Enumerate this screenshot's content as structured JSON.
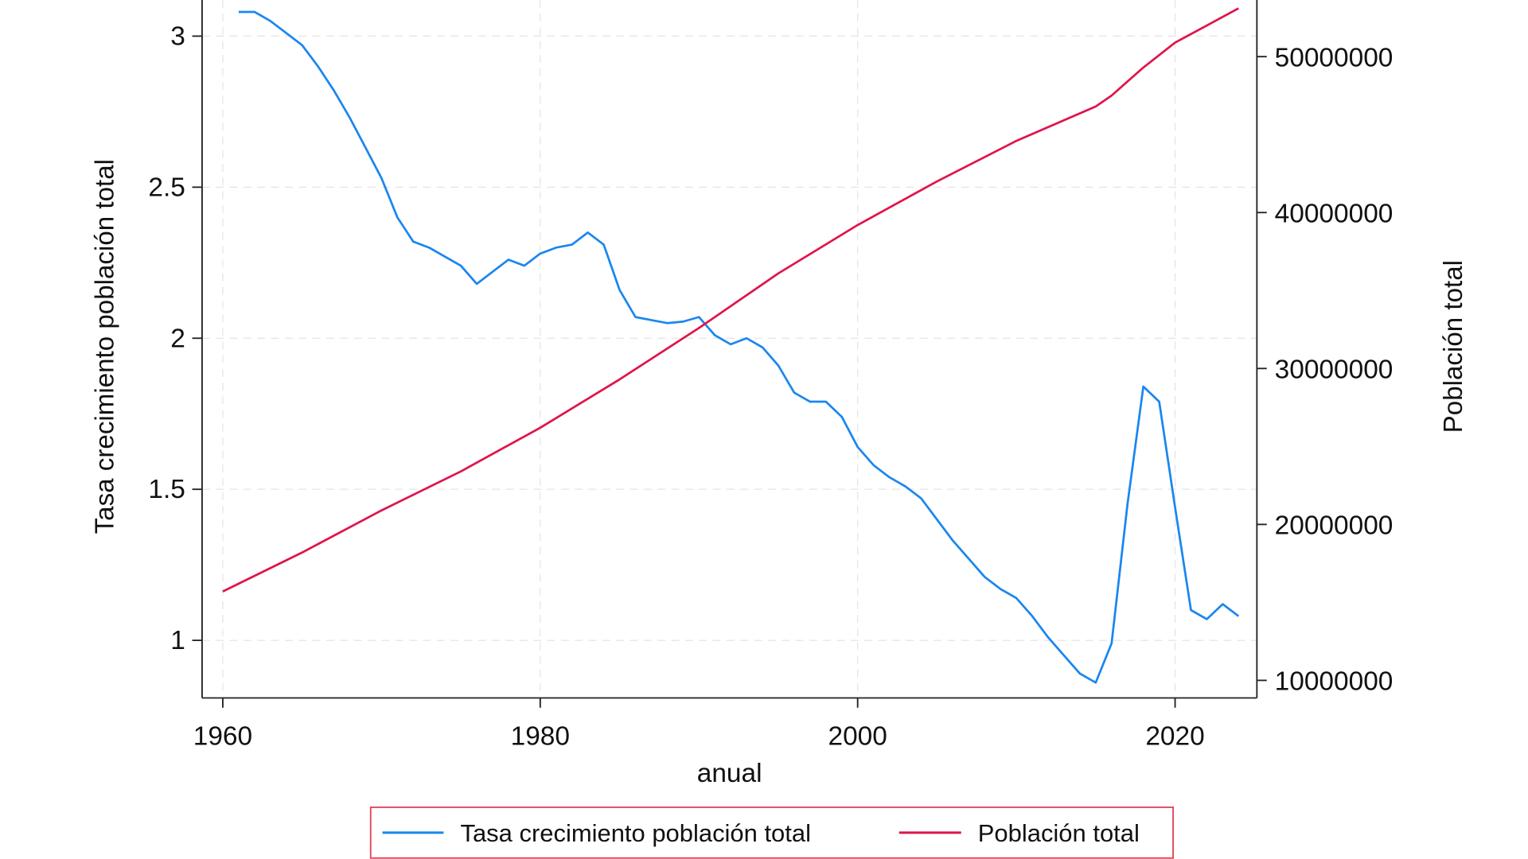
{
  "chart_data": {
    "type": "line",
    "title": "",
    "xlabel": "anual",
    "ylabel_left": "Tasa crecimiento población total",
    "ylabel_right": "Población total",
    "x_ticks": [
      1960,
      1980,
      2000,
      2020
    ],
    "y_left_ticks": [
      "1",
      "1.5",
      "2",
      "2.5",
      "3"
    ],
    "y_right_ticks": [
      "10000000",
      "20000000",
      "30000000",
      "40000000",
      "50000000"
    ],
    "grid": true,
    "legend_position": "bottom",
    "series": [
      {
        "name": "Tasa crecimiento población total",
        "axis": "left",
        "color": "#1a86f0",
        "x": [
          1961,
          1962,
          1963,
          1964,
          1965,
          1966,
          1967,
          1968,
          1969,
          1970,
          1971,
          1972,
          1973,
          1974,
          1975,
          1976,
          1977,
          1978,
          1979,
          1980,
          1981,
          1982,
          1983,
          1984,
          1985,
          1986,
          1987,
          1988,
          1989,
          1990,
          1991,
          1992,
          1993,
          1994,
          1995,
          1996,
          1997,
          1998,
          1999,
          2000,
          2001,
          2002,
          2003,
          2004,
          2005,
          2006,
          2007,
          2008,
          2009,
          2010,
          2011,
          2012,
          2013,
          2014,
          2015,
          2016,
          2017,
          2018,
          2019,
          2020,
          2021,
          2022,
          2023,
          2024
        ],
        "y": [
          3.08,
          3.08,
          3.05,
          3.01,
          2.97,
          2.9,
          2.82,
          2.73,
          2.63,
          2.53,
          2.4,
          2.32,
          2.3,
          2.27,
          2.24,
          2.18,
          2.22,
          2.26,
          2.24,
          2.28,
          2.3,
          2.31,
          2.35,
          2.31,
          2.16,
          2.07,
          2.06,
          2.05,
          2.055,
          2.07,
          2.01,
          1.98,
          2.0,
          1.97,
          1.91,
          1.82,
          1.79,
          1.79,
          1.74,
          1.64,
          1.58,
          1.54,
          1.51,
          1.47,
          1.4,
          1.33,
          1.27,
          1.21,
          1.17,
          1.14,
          1.08,
          1.01,
          0.95,
          0.89,
          0.86,
          0.99,
          1.45,
          1.84,
          1.79,
          1.44,
          1.1,
          1.07,
          1.12,
          1.08
        ]
      },
      {
        "name": "Población total",
        "axis": "right",
        "color": "#e0144a",
        "x": [
          1960,
          1965,
          1970,
          1975,
          1980,
          1985,
          1990,
          1995,
          2000,
          2005,
          2010,
          2015,
          2016,
          2018,
          2020,
          2022,
          2024
        ],
        "y": [
          15700000,
          18200000,
          20900000,
          23400000,
          26200000,
          29300000,
          32600000,
          36100000,
          39200000,
          42000000,
          44600000,
          46800000,
          47500000,
          49300000,
          50900000,
          52000000,
          53100000
        ]
      }
    ],
    "legend": {
      "items": [
        "Tasa crecimiento población total",
        "Población total"
      ],
      "border_color": "#e0445a"
    }
  }
}
